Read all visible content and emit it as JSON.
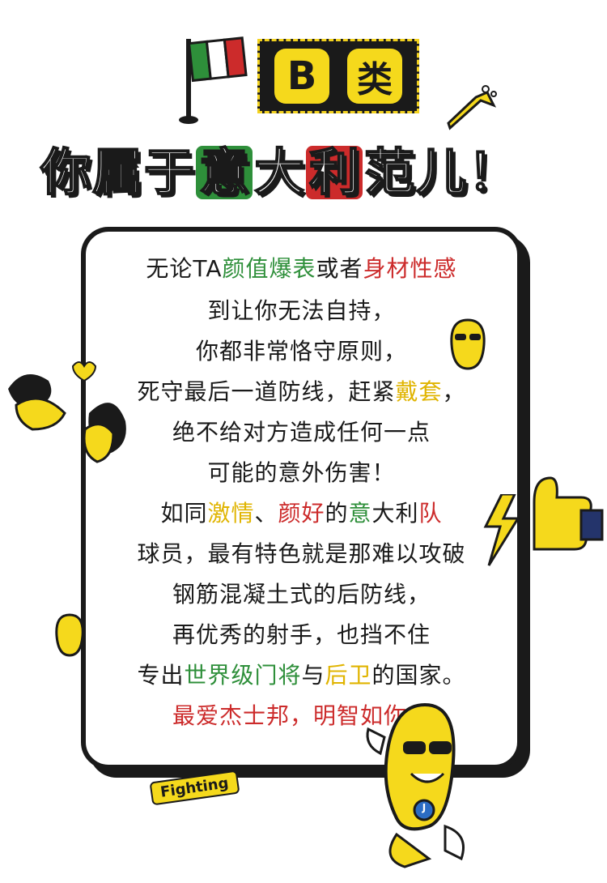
{
  "header": {
    "badge_letter": "B",
    "badge_word": "类",
    "title_parts": [
      "你",
      "属",
      "于",
      "意",
      "大",
      "利",
      "范",
      "儿",
      "！"
    ]
  },
  "body": {
    "l1": [
      "无论TA",
      "颜值爆表",
      "或者",
      "身材性感"
    ],
    "l2": "到让你无法自持，",
    "l3": "你都非常恪守原则，",
    "l4": [
      "死守最后一道防线，赶紧",
      "戴套",
      "，"
    ],
    "l5": "绝不给对方造成任何一点",
    "l6": "可能的意外伤害！",
    "l7": [
      "如同",
      "激情",
      "、",
      "颜好",
      "的",
      "意",
      "大利",
      "队"
    ],
    "l8": "球员，最有特色就是那难以攻破",
    "l9": "钢筋混凝土式的后防线，",
    "l10": "再优秀的射手，也挡不住",
    "l11": [
      "专出",
      "世界级门将",
      "与",
      "后卫",
      "的国家。"
    ],
    "l12": "最爱杰士邦，明智如你！"
  },
  "sticker": {
    "fighting": "Fighting",
    "mascot_shirt": "J"
  },
  "colors": {
    "green": "#2e8f3a",
    "red": "#cc2b2b",
    "yellow": "#f5d91c",
    "ink": "#1a1a1a"
  }
}
